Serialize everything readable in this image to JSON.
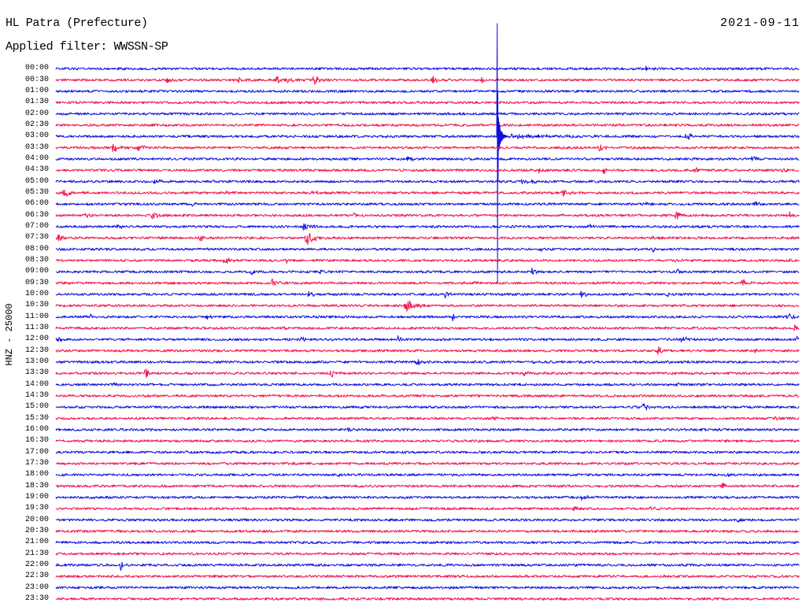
{
  "chart_data": {
    "type": "line",
    "title": "HL Patra (Prefecture)",
    "subtitle": "Applied filter: WWSSN-SP",
    "date": "2021-09-11",
    "ylabel": "HNZ - 25000",
    "row_labels": [
      "00:00",
      "00:30",
      "01:00",
      "01:30",
      "02:00",
      "02:30",
      "03:00",
      "03:30",
      "04:00",
      "04:30",
      "05:00",
      "05:30",
      "06:00",
      "06:30",
      "07:00",
      "07:30",
      "08:00",
      "08:30",
      "09:00",
      "09:30",
      "10:00",
      "10:30",
      "11:00",
      "11:30",
      "12:00",
      "12:30",
      "13:00",
      "13:30",
      "14:00",
      "14:30",
      "15:00",
      "15:30",
      "16:00",
      "16:30",
      "17:00",
      "17:30",
      "18:00",
      "18:30",
      "19:00",
      "19:30",
      "20:00",
      "20:30",
      "21:00",
      "21:30",
      "22:00",
      "22:30",
      "23:00",
      "23:30"
    ],
    "colors": [
      "#0f0fe0",
      "#f01450"
    ],
    "large_event": {
      "time": "03:17:48",
      "max": 250000,
      "min": -325000
    },
    "events": [
      {
        "time": "00:23:48",
        "amp": 7000,
        "dur_s": 18
      },
      {
        "time": "00:34:30",
        "amp": 9000,
        "dur_s": 21
      },
      {
        "time": "00:37:24",
        "amp": 6000,
        "dur_s": 36
      },
      {
        "time": "00:38:54",
        "amp": 8000,
        "dur_s": 24
      },
      {
        "time": "00:39:18",
        "amp": 12000,
        "dur_s": 24
      },
      {
        "time": "00:40:24",
        "amp": 11000,
        "dur_s": 36
      },
      {
        "time": "00:45:12",
        "amp": 9000,
        "dur_s": 24
      },
      {
        "time": "00:47:12",
        "amp": 7000,
        "dur_s": 12
      },
      {
        "time": "02:15:48",
        "amp": 5000,
        "dur_s": 18
      },
      {
        "time": "03:13:00",
        "amp": 5000,
        "dur_s": 30
      },
      {
        "time": "03:25:24",
        "amp": 7000,
        "dur_s": 48
      },
      {
        "time": "03:32:18",
        "amp": 10000,
        "dur_s": 42
      },
      {
        "time": "03:33:18",
        "amp": 8000,
        "dur_s": 30
      },
      {
        "time": "03:44:36",
        "amp": 5000,
        "dur_s": 18
      },
      {
        "time": "03:51:54",
        "amp": 9000,
        "dur_s": 24
      },
      {
        "time": "04:14:12",
        "amp": 6000,
        "dur_s": 24
      },
      {
        "time": "04:28:06",
        "amp": 8000,
        "dur_s": 18
      },
      {
        "time": "04:49:30",
        "amp": 7000,
        "dur_s": 18
      },
      {
        "time": "04:52:06",
        "amp": 6000,
        "dur_s": 18
      },
      {
        "time": "04:55:48",
        "amp": 6000,
        "dur_s": 30
      },
      {
        "time": "04:59:18",
        "amp": 6000,
        "dur_s": 18
      },
      {
        "time": "05:04:00",
        "amp": 8000,
        "dur_s": 18
      },
      {
        "time": "05:06:18",
        "amp": 5000,
        "dur_s": 18
      },
      {
        "time": "05:18:42",
        "amp": 5000,
        "dur_s": 72
      },
      {
        "time": "05:27:36",
        "amp": 5000,
        "dur_s": 18
      },
      {
        "time": "05:30:18",
        "amp": 10000,
        "dur_s": 42
      },
      {
        "time": "05:36:54",
        "amp": 6000,
        "dur_s": 18
      },
      {
        "time": "05:40:24",
        "amp": 5000,
        "dur_s": 24
      },
      {
        "time": "05:50:18",
        "amp": 12000,
        "dur_s": 30
      },
      {
        "time": "06:05:30",
        "amp": 7000,
        "dur_s": 18
      },
      {
        "time": "06:23:48",
        "amp": 6000,
        "dur_s": 30
      },
      {
        "time": "06:28:12",
        "amp": 6000,
        "dur_s": 18
      },
      {
        "time": "06:31:12",
        "amp": 9000,
        "dur_s": 18
      },
      {
        "time": "06:33:54",
        "amp": 9000,
        "dur_s": 30
      },
      {
        "time": "06:42:00",
        "amp": 8000,
        "dur_s": 24
      },
      {
        "time": "06:55:00",
        "amp": 12000,
        "dur_s": 30
      },
      {
        "time": "06:59:36",
        "amp": 7000,
        "dur_s": 18
      },
      {
        "time": "07:02:30",
        "amp": 6000,
        "dur_s": 24
      },
      {
        "time": "07:10:00",
        "amp": 10000,
        "dur_s": 36
      },
      {
        "time": "07:21:30",
        "amp": 8000,
        "dur_s": 18
      },
      {
        "time": "07:30:06",
        "amp": 12000,
        "dur_s": 18
      },
      {
        "time": "07:35:48",
        "amp": 10000,
        "dur_s": 24
      },
      {
        "time": "07:40:06",
        "amp": 17000,
        "dur_s": 36
      },
      {
        "time": "07:54:06",
        "amp": 5000,
        "dur_s": 18
      },
      {
        "time": "08:05:48",
        "amp": 5000,
        "dur_s": 24
      },
      {
        "time": "08:19:30",
        "amp": 5000,
        "dur_s": 18
      },
      {
        "time": "08:24:06",
        "amp": 7000,
        "dur_s": 18
      },
      {
        "time": "08:36:48",
        "amp": 9000,
        "dur_s": 30
      },
      {
        "time": "08:39:18",
        "amp": 6000,
        "dur_s": 18
      },
      {
        "time": "08:59:36",
        "amp": 6000,
        "dur_s": 18
      },
      {
        "time": "09:07:54",
        "amp": 5000,
        "dur_s": 24
      },
      {
        "time": "09:10:36",
        "amp": 6000,
        "dur_s": 18
      },
      {
        "time": "09:19:12",
        "amp": 8000,
        "dur_s": 24
      },
      {
        "time": "09:25:06",
        "amp": 8000,
        "dur_s": 18
      },
      {
        "time": "09:38:42",
        "amp": 9000,
        "dur_s": 30
      },
      {
        "time": "09:46:54",
        "amp": 5000,
        "dur_s": 18
      },
      {
        "time": "09:57:42",
        "amp": 8000,
        "dur_s": 24
      },
      {
        "time": "10:10:12",
        "amp": 8000,
        "dur_s": 24
      },
      {
        "time": "10:15:42",
        "amp": 7000,
        "dur_s": 18
      },
      {
        "time": "10:21:12",
        "amp": 7000,
        "dur_s": 24
      },
      {
        "time": "10:24:42",
        "amp": 8000,
        "dur_s": 6
      },
      {
        "time": "10:44:06",
        "amp": 15000,
        "dur_s": 54
      },
      {
        "time": "11:01:24",
        "amp": 7000,
        "dur_s": 18
      },
      {
        "time": "11:06:06",
        "amp": 6000,
        "dur_s": 18
      },
      {
        "time": "11:16:00",
        "amp": 8000,
        "dur_s": 18
      },
      {
        "time": "11:29:30",
        "amp": 12000,
        "dur_s": 30
      },
      {
        "time": "11:39:12",
        "amp": 6000,
        "dur_s": 18
      },
      {
        "time": "11:59:48",
        "amp": 9000,
        "dur_s": 12
      },
      {
        "time": "12:00:06",
        "amp": 9000,
        "dur_s": 18
      },
      {
        "time": "12:09:48",
        "amp": 9000,
        "dur_s": 24
      },
      {
        "time": "12:13:48",
        "amp": 6000,
        "dur_s": 18
      },
      {
        "time": "12:25:12",
        "amp": 12000,
        "dur_s": 30
      },
      {
        "time": "12:29:54",
        "amp": 10000,
        "dur_s": 6
      },
      {
        "time": "12:54:18",
        "amp": 9000,
        "dur_s": 18
      },
      {
        "time": "12:58:12",
        "amp": 5000,
        "dur_s": 18
      },
      {
        "time": "13:14:30",
        "amp": 9000,
        "dur_s": 30
      },
      {
        "time": "13:19:18",
        "amp": 5000,
        "dur_s": 18
      },
      {
        "time": "13:33:36",
        "amp": 11000,
        "dur_s": 24
      },
      {
        "time": "13:41:06",
        "amp": 10000,
        "dur_s": 24
      },
      {
        "time": "13:48:54",
        "amp": 9000,
        "dur_s": 30
      },
      {
        "time": "14:02:24",
        "amp": 6000,
        "dur_s": 18
      },
      {
        "time": "14:25:00",
        "amp": 7000,
        "dur_s": 12
      },
      {
        "time": "15:23:42",
        "amp": 10000,
        "dur_s": 30
      },
      {
        "time": "15:47:36",
        "amp": 7000,
        "dur_s": 18
      },
      {
        "time": "15:59:00",
        "amp": 5000,
        "dur_s": 18
      },
      {
        "time": "16:11:48",
        "amp": 8000,
        "dur_s": 18
      },
      {
        "time": "17:05:18",
        "amp": 7000,
        "dur_s": 18
      },
      {
        "time": "17:16:54",
        "amp": 5000,
        "dur_s": 36
      },
      {
        "time": "17:39:36",
        "amp": 5000,
        "dur_s": 18
      },
      {
        "time": "18:11:24",
        "amp": 6000,
        "dur_s": 18
      },
      {
        "time": "18:27:00",
        "amp": 6000,
        "dur_s": 18
      },
      {
        "time": "18:56:54",
        "amp": 8000,
        "dur_s": 18
      },
      {
        "time": "19:09:42",
        "amp": 5000,
        "dur_s": 12
      },
      {
        "time": "19:21:12",
        "amp": 10000,
        "dur_s": 24
      },
      {
        "time": "19:50:54",
        "amp": 8000,
        "dur_s": 24
      },
      {
        "time": "19:54:00",
        "amp": 6000,
        "dur_s": 18
      },
      {
        "time": "20:27:30",
        "amp": 6000,
        "dur_s": 18
      },
      {
        "time": "20:38:36",
        "amp": 6000,
        "dur_s": 18
      },
      {
        "time": "22:02:36",
        "amp": 14000,
        "dur_s": 24
      }
    ]
  }
}
